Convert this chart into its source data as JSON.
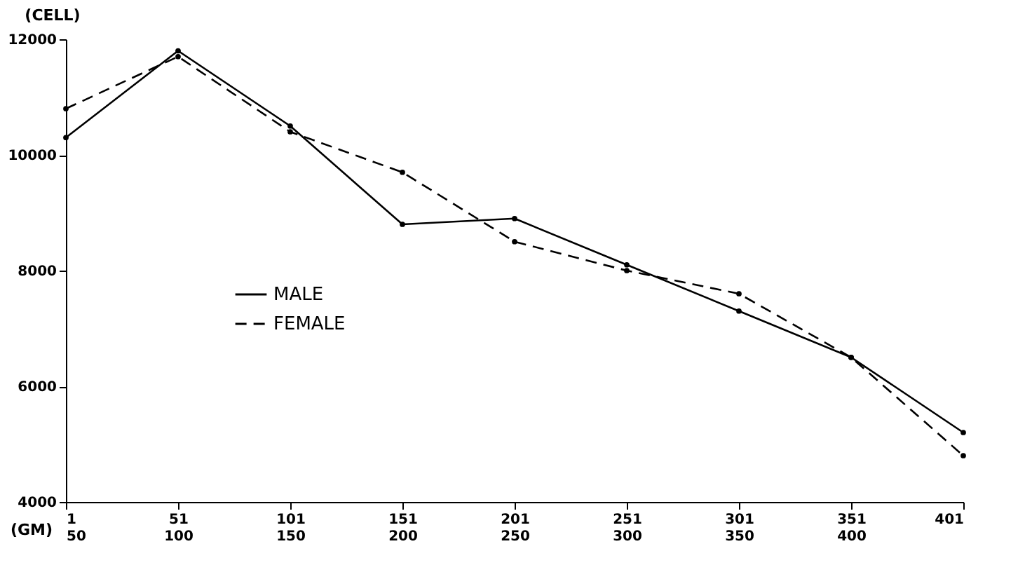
{
  "chart_data": {
    "type": "line",
    "xlabel": "(GM)",
    "ylabel": "(CELL)",
    "categories": [
      "1\n50",
      "51\n100",
      "101\n150",
      "151\n200",
      "201\n250",
      "251\n300",
      "301\n350",
      "351\n400",
      "401"
    ],
    "series": [
      {
        "name": "MALE",
        "color": "#000000",
        "line_style": "solid",
        "values": [
          10300,
          11800,
          10500,
          8800,
          8900,
          8100,
          7300,
          6500,
          5200
        ]
      },
      {
        "name": "FEMALE",
        "color": "#000000",
        "line_style": "dashed",
        "values": [
          10800,
          11700,
          10400,
          9700,
          8500,
          8000,
          7600,
          6500,
          4800
        ]
      }
    ],
    "ylim": [
      4000,
      12000
    ],
    "yticks": [
      4000,
      6000,
      8000,
      10000,
      12000
    ],
    "grid": false,
    "legend": "bottom left",
    "marker": "circle"
  }
}
